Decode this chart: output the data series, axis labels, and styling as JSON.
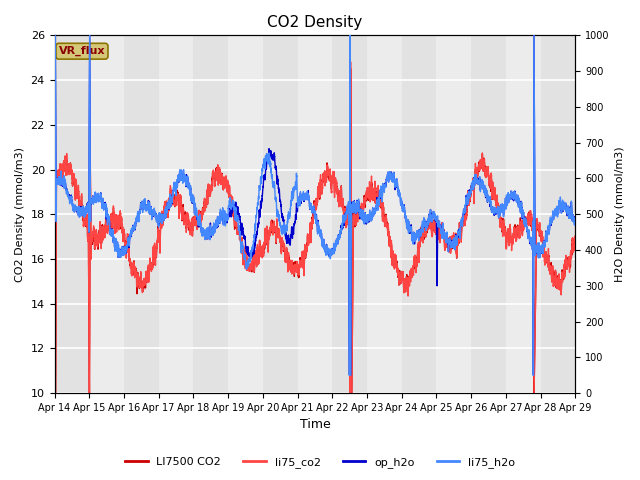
{
  "title": "CO2 Density",
  "xlabel": "Time",
  "ylabel_left": "CO2 Density (mmol/m3)",
  "ylabel_right": "H2O Density (mmol/m3)",
  "ylim_left": [
    10,
    26
  ],
  "ylim_right": [
    0,
    1000
  ],
  "xtick_labels": [
    "Apr 14",
    "Apr 15",
    "Apr 16",
    "Apr 17",
    "Apr 18",
    "Apr 19",
    "Apr 20",
    "Apr 21",
    "Apr 22",
    "Apr 23",
    "Apr 24",
    "Apr 25",
    "Apr 26",
    "Apr 27",
    "Apr 28",
    "Apr 29"
  ],
  "annotation_text": "VR_flux",
  "annotation_color": "#8B0000",
  "annotation_bg": "#d4c878",
  "color_LI7500": "#cc0000",
  "color_li75_co2": "#ff4444",
  "color_op_h2o": "#0000cc",
  "color_li75_h2o": "#4488ff",
  "band_colors": [
    "#e2e2e2",
    "#ececec"
  ],
  "bg_color": "#e8e8e8",
  "legend_labels": [
    "LI7500 CO2",
    "li75_co2",
    "op_h2o",
    "li75_h2o"
  ],
  "n_days": 15,
  "pts_per_day": 400
}
